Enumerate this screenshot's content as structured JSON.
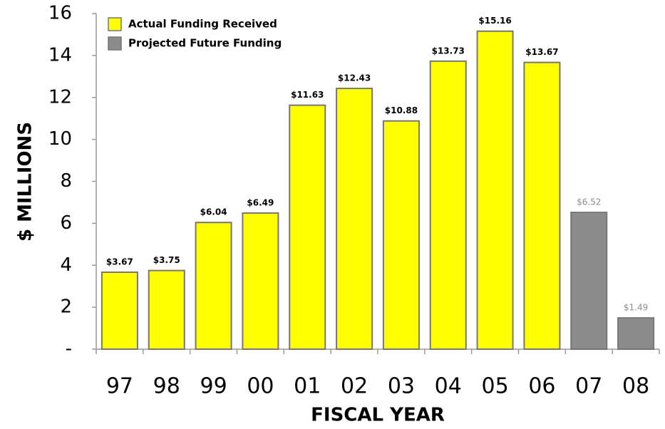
{
  "chart_data": {
    "type": "bar",
    "categories": [
      "97",
      "98",
      "99",
      "00",
      "01",
      "02",
      "03",
      "04",
      "05",
      "06",
      "07",
      "08"
    ],
    "series": [
      {
        "name": "Actual Funding Received",
        "color": "#ffff00",
        "label_color": "#000000",
        "values": [
          3.67,
          3.75,
          6.04,
          6.49,
          11.63,
          12.43,
          10.88,
          13.73,
          15.16,
          13.67,
          null,
          null
        ],
        "value_labels": [
          "$3.67",
          "$3.75",
          "$6.04",
          "$6.49",
          "$11.63",
          "$12.43",
          "$10.88",
          "$13.73",
          "$15.16",
          "$13.67",
          null,
          null
        ]
      },
      {
        "name": "Projected Future Funding",
        "color": "#8c8c8c",
        "label_color": "#8c8c8c",
        "values": [
          null,
          null,
          null,
          null,
          null,
          null,
          null,
          null,
          null,
          null,
          6.52,
          1.49
        ],
        "value_labels": [
          null,
          null,
          null,
          null,
          null,
          null,
          null,
          null,
          null,
          null,
          "$6.52",
          "$1.49"
        ]
      }
    ],
    "x_label": "FISCAL YEAR",
    "y_label": "$ MILLIONS",
    "ylim": [
      0,
      16
    ],
    "yticks": [
      {
        "value": 0,
        "label": "-"
      },
      2,
      4,
      6,
      8,
      10,
      12,
      14,
      16
    ],
    "legend": "top-left"
  }
}
